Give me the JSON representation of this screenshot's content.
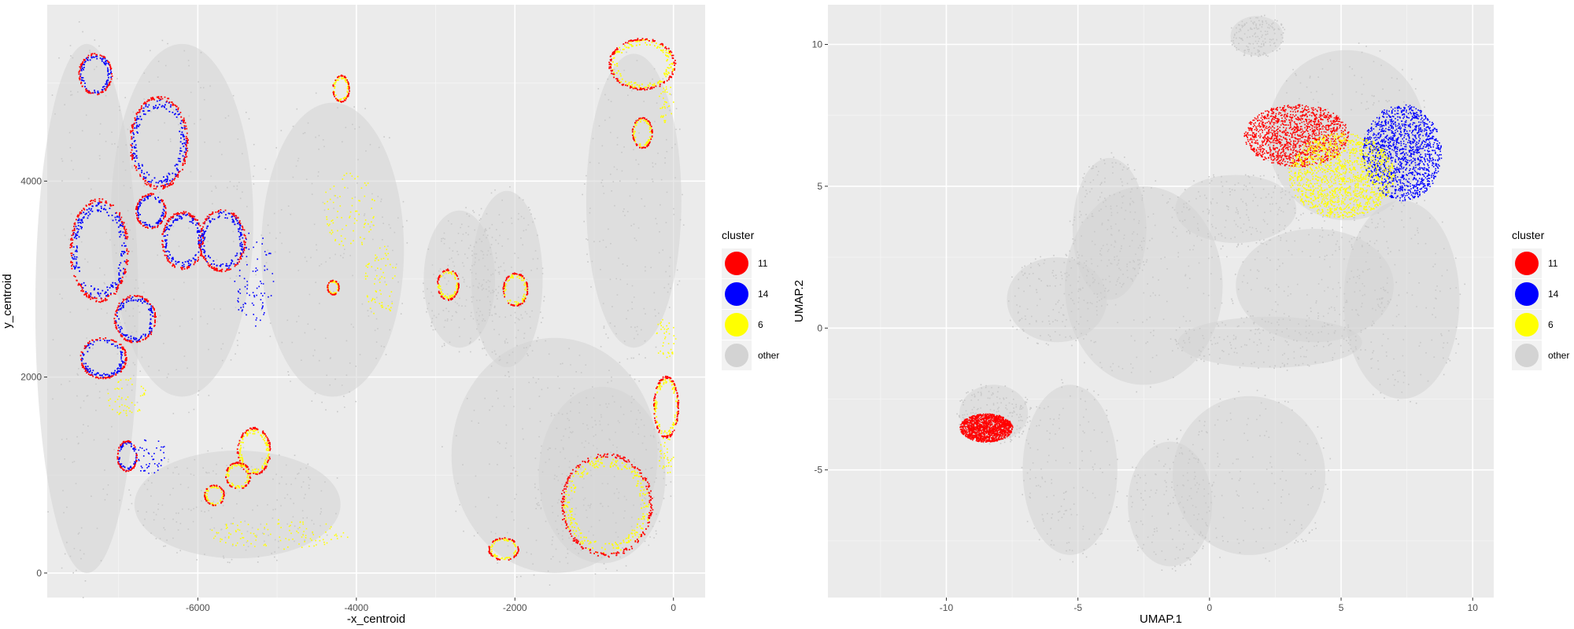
{
  "chart_data": [
    {
      "type": "scatter",
      "xlabel": "-x_centroid",
      "ylabel": "y_centroid",
      "xlim": [
        -7900,
        400
      ],
      "ylim": [
        -250,
        5800
      ],
      "x_ticks": [
        -6000,
        -4000,
        -2000,
        0
      ],
      "x_tick_labels": [
        "-6000",
        "-4000",
        "-2000",
        "0"
      ],
      "y_ticks": [
        0,
        2000,
        4000
      ],
      "y_tick_labels": [
        "0",
        "2000",
        "4000"
      ],
      "grid": true,
      "legend": {
        "title": "cluster",
        "placement": "right",
        "entries": [
          {
            "label": "11",
            "color": "#ff0000"
          },
          {
            "label": "14",
            "color": "#0000ff"
          },
          {
            "label": "6",
            "color": "#ffff00"
          },
          {
            "label": "other",
            "color": "#d3d3d3"
          }
        ]
      },
      "background_regions": [
        {
          "x": -7400,
          "y": 2700,
          "rx": 650,
          "ry": 2700
        },
        {
          "x": -6200,
          "y": 3600,
          "rx": 900,
          "ry": 1800
        },
        {
          "x": -5500,
          "y": 700,
          "rx": 1300,
          "ry": 550
        },
        {
          "x": -4300,
          "y": 3300,
          "rx": 900,
          "ry": 1500
        },
        {
          "x": -2700,
          "y": 3000,
          "rx": 450,
          "ry": 700
        },
        {
          "x": -2100,
          "y": 3000,
          "rx": 450,
          "ry": 900
        },
        {
          "x": -1500,
          "y": 1200,
          "rx": 1300,
          "ry": 1200
        },
        {
          "x": -500,
          "y": 3800,
          "rx": 600,
          "ry": 1500
        },
        {
          "x": -900,
          "y": 1000,
          "rx": 800,
          "ry": 900
        }
      ],
      "clusters": [
        {
          "type": "ring",
          "x": -6500,
          "y": 4400,
          "rx": 350,
          "ry": 450,
          "fill": "#0000ff"
        },
        {
          "type": "ring",
          "x": -7250,
          "y": 3300,
          "rx": 350,
          "ry": 500,
          "fill": "#0000ff"
        },
        {
          "type": "ring",
          "x": -6600,
          "y": 3700,
          "rx": 180,
          "ry": 170,
          "fill": "#0000ff"
        },
        {
          "type": "ring",
          "x": -6200,
          "y": 3400,
          "rx": 250,
          "ry": 280,
          "fill": "#0000ff"
        },
        {
          "type": "ring",
          "x": -5700,
          "y": 3400,
          "rx": 280,
          "ry": 300,
          "fill": "#0000ff"
        },
        {
          "type": "ring",
          "x": -6800,
          "y": 2600,
          "rx": 250,
          "ry": 230,
          "fill": "#0000ff"
        },
        {
          "type": "ring",
          "x": -7200,
          "y": 2200,
          "rx": 280,
          "ry": 200,
          "fill": "#0000ff"
        },
        {
          "type": "ring",
          "x": -7300,
          "y": 5100,
          "rx": 200,
          "ry": 200,
          "fill": "#0000ff"
        },
        {
          "type": "ring",
          "x": -6900,
          "y": 1200,
          "rx": 120,
          "ry": 150,
          "fill": "#0000ff"
        },
        {
          "type": "ring",
          "x": -5300,
          "y": 1250,
          "rx": 200,
          "ry": 230,
          "fill": "#ffff00"
        },
        {
          "type": "ring",
          "x": -5500,
          "y": 1000,
          "rx": 150,
          "ry": 130,
          "fill": "#ffff00"
        },
        {
          "type": "ring",
          "x": -4200,
          "y": 4950,
          "rx": 100,
          "ry": 130,
          "fill": "#ffff00"
        },
        {
          "type": "ring",
          "x": -850,
          "y": 700,
          "rx": 550,
          "ry": 500,
          "fill": "#ffff00"
        },
        {
          "type": "ring",
          "x": -2150,
          "y": 250,
          "rx": 180,
          "ry": 110,
          "fill": "#ffff00"
        },
        {
          "type": "ring",
          "x": -100,
          "y": 1700,
          "rx": 150,
          "ry": 300,
          "fill": "#ffff00"
        },
        {
          "type": "ring",
          "x": -400,
          "y": 5200,
          "rx": 400,
          "ry": 250,
          "fill": "#ffff00"
        },
        {
          "type": "ring",
          "x": -2850,
          "y": 2950,
          "rx": 130,
          "ry": 150,
          "fill": "#ffff00"
        },
        {
          "type": "ring",
          "x": -2000,
          "y": 2900,
          "rx": 150,
          "ry": 160,
          "fill": "#ffff00"
        },
        {
          "type": "ring",
          "x": -4300,
          "y": 2920,
          "rx": 70,
          "ry": 70,
          "fill": "#ffff00"
        },
        {
          "type": "ring",
          "x": -5800,
          "y": 800,
          "rx": 120,
          "ry": 100,
          "fill": "#ffff00"
        },
        {
          "type": "ring",
          "x": -400,
          "y": 4500,
          "rx": 120,
          "ry": 150,
          "fill": "#ffff00"
        },
        {
          "type": "scatter",
          "x": -5000,
          "y": 400,
          "rx": 900,
          "ry": 150,
          "fill": "#ffff00"
        },
        {
          "type": "scatter",
          "x": -5300,
          "y": 3000,
          "rx": 250,
          "ry": 500,
          "fill": "#0000ff"
        },
        {
          "type": "scatter",
          "x": -4100,
          "y": 3700,
          "rx": 350,
          "ry": 400,
          "fill": "#ffff00"
        },
        {
          "type": "scatter",
          "x": -3700,
          "y": 3000,
          "rx": 200,
          "ry": 400,
          "fill": "#ffff00"
        },
        {
          "type": "scatter",
          "x": -6900,
          "y": 1800,
          "rx": 250,
          "ry": 200,
          "fill": "#ffff00"
        },
        {
          "type": "scatter",
          "x": -6600,
          "y": 1200,
          "rx": 200,
          "ry": 200,
          "fill": "#0000ff"
        },
        {
          "type": "scatter",
          "x": -100,
          "y": 2400,
          "rx": 150,
          "ry": 200,
          "fill": "#ffff00"
        },
        {
          "type": "scatter",
          "x": -100,
          "y": 1200,
          "rx": 100,
          "ry": 200,
          "fill": "#ffff00"
        },
        {
          "type": "scatter",
          "x": -100,
          "y": 4800,
          "rx": 100,
          "ry": 200,
          "fill": "#ffff00"
        }
      ]
    },
    {
      "type": "scatter",
      "xlabel": "UMAP.1",
      "ylabel": "UMAP.2",
      "xlim": [
        -14.5,
        10.8
      ],
      "ylim": [
        -9.5,
        11.4
      ],
      "x_ticks": [
        -10,
        -5,
        0,
        5,
        10
      ],
      "x_tick_labels": [
        "-10",
        "-5",
        "0",
        "5",
        "10"
      ],
      "y_ticks": [
        -5,
        0,
        5,
        10
      ],
      "y_tick_labels": [
        "-5",
        "0",
        "5",
        "10"
      ],
      "grid": true,
      "legend": {
        "title": "cluster",
        "placement": "right",
        "entries": [
          {
            "label": "11",
            "color": "#ff0000"
          },
          {
            "label": "14",
            "color": "#0000ff"
          },
          {
            "label": "6",
            "color": "#ffff00"
          },
          {
            "label": "other",
            "color": "#d3d3d3"
          }
        ]
      },
      "background_regions": [
        {
          "x": -2.5,
          "y": 1.5,
          "rx": 3.0,
          "ry": 3.5
        },
        {
          "x": -3.8,
          "y": 3.5,
          "rx": 1.4,
          "ry": 2.5
        },
        {
          "x": -5.8,
          "y": 1.0,
          "rx": 1.9,
          "ry": 1.5
        },
        {
          "x": -8.2,
          "y": -3.0,
          "rx": 1.3,
          "ry": 1.0
        },
        {
          "x": -5.3,
          "y": -5.0,
          "rx": 1.8,
          "ry": 3.0
        },
        {
          "x": -1.5,
          "y": -6.2,
          "rx": 1.6,
          "ry": 2.2
        },
        {
          "x": 1.5,
          "y": -5.2,
          "rx": 2.9,
          "ry": 2.8
        },
        {
          "x": 1.0,
          "y": 4.2,
          "rx": 2.3,
          "ry": 1.2
        },
        {
          "x": 5.2,
          "y": 6.8,
          "rx": 3.0,
          "ry": 3.0
        },
        {
          "x": 7.3,
          "y": 1.0,
          "rx": 2.2,
          "ry": 3.5
        },
        {
          "x": 4.0,
          "y": 1.5,
          "rx": 3.0,
          "ry": 2.0
        },
        {
          "x": 2.3,
          "y": -0.5,
          "rx": 3.5,
          "ry": 0.9
        },
        {
          "x": 1.8,
          "y": 10.3,
          "rx": 1.0,
          "ry": 0.7
        }
      ],
      "clusters": [
        {
          "type": "scatter",
          "x": 3.3,
          "y": 6.8,
          "rx": 2.0,
          "ry": 1.1,
          "fill": "#ff0000"
        },
        {
          "type": "scatter",
          "x": 7.3,
          "y": 6.2,
          "rx": 1.5,
          "ry": 1.7,
          "fill": "#0000ff"
        },
        {
          "type": "scatter",
          "x": 5.0,
          "y": 5.4,
          "rx": 2.0,
          "ry": 1.5,
          "fill": "#ffff00"
        },
        {
          "type": "scatter",
          "x": -8.5,
          "y": -3.5,
          "rx": 1.0,
          "ry": 0.5,
          "fill": "#ff0000"
        }
      ]
    }
  ]
}
